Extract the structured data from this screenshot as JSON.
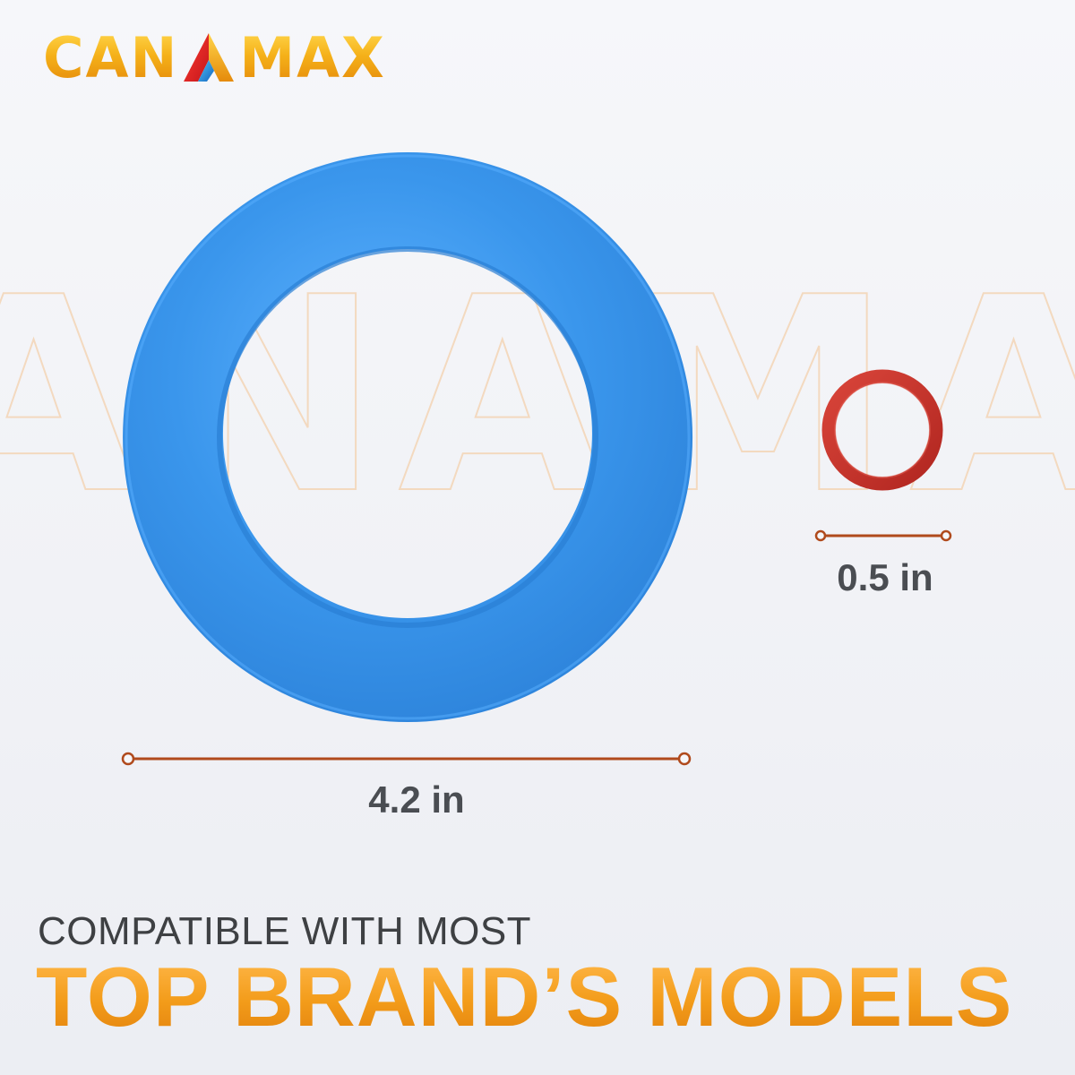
{
  "brand": {
    "name_left": "CAN",
    "name_right": "MAX",
    "logo_mark": "triangle-a-logo-icon",
    "watermark_text": "CANAMAX"
  },
  "products": {
    "large_ring": {
      "item": "blue-flapper-seal-ring",
      "color": "#2f8fe6",
      "dimension_label": "4.2 in"
    },
    "small_ring": {
      "item": "red-o-ring",
      "color": "#c4302a",
      "dimension_label": "0.5 in"
    }
  },
  "caption": {
    "line1": "COMPATIBLE WITH MOST",
    "line2": "TOP BRAND’S MODELS"
  },
  "colors": {
    "accent_orange": "#f39c1a",
    "measure_line": "#b04a1c",
    "text_gray": "#4a4d52"
  }
}
